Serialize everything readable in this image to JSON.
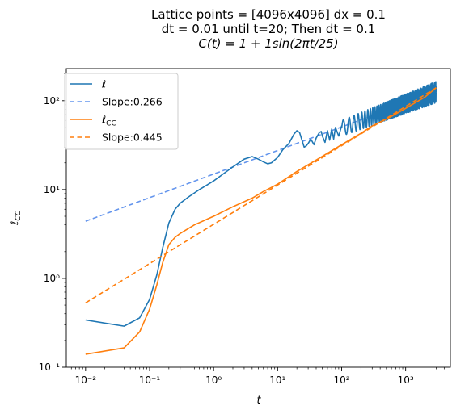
{
  "chart_data": {
    "type": "line",
    "title_lines": [
      "Lattice points = [4096x4096] dx = 0.1",
      "dt = 0.01 until t=20; Then dt = 0.1",
      "C(t) = 1 + 1sin(2πt/25)"
    ],
    "xlabel": "t",
    "ylabel": "ℓ_CC",
    "xscale": "log",
    "yscale": "log",
    "xlim": [
      0.005,
      5000
    ],
    "ylim": [
      0.1,
      230
    ],
    "x_ticks": [
      {
        "value": 0.01,
        "label": "10⁻²"
      },
      {
        "value": 0.1,
        "label": "10⁻¹"
      },
      {
        "value": 1,
        "label": "10⁰"
      },
      {
        "value": 10,
        "label": "10¹"
      },
      {
        "value": 100,
        "label": "10²"
      },
      {
        "value": 1000,
        "label": "10³"
      }
    ],
    "y_ticks": [
      {
        "value": 0.1,
        "label": "10⁻¹"
      },
      {
        "value": 1,
        "label": "10⁰"
      },
      {
        "value": 10,
        "label": "10¹"
      },
      {
        "value": 100,
        "label": "10²"
      }
    ],
    "grid": false,
    "legend_position": "top-left",
    "series": [
      {
        "name": "ℓ",
        "color": "#1f77b4",
        "style": "solid",
        "x": [
          0.01,
          0.04,
          0.07,
          0.1,
          0.13,
          0.16,
          0.2,
          0.25,
          0.3,
          0.4,
          0.6,
          1,
          2,
          3,
          4,
          5,
          6,
          7,
          8,
          10,
          12,
          15,
          18,
          20,
          22,
          24,
          26,
          28,
          30,
          33,
          37,
          40,
          45,
          48,
          50,
          55,
          60,
          65,
          70,
          75,
          80,
          90,
          100
        ],
        "y": [
          0.34,
          0.29,
          0.36,
          0.58,
          1.1,
          2.2,
          4.2,
          6.0,
          7.0,
          8.2,
          10.0,
          12.5,
          18.0,
          22.0,
          23.5,
          22.0,
          20.5,
          19.5,
          20.0,
          23.0,
          28.0,
          33.0,
          42.0,
          46.0,
          44.0,
          36.0,
          30.0,
          31.0,
          33.0,
          37.0,
          32.0,
          38.0,
          44.0,
          45.0,
          40.0,
          34.0,
          46.0,
          36.0,
          48.0,
          37.0,
          50.0,
          40.0,
          52.0
        ]
      },
      {
        "name": "Slope:0.266",
        "color": "#6495ed",
        "style": "dashed",
        "x": [
          0.01,
          3000
        ],
        "y": [
          4.4,
          125
        ]
      },
      {
        "name": "ℓ_CC",
        "color": "#ff7f0e",
        "style": "solid",
        "x": [
          0.01,
          0.04,
          0.07,
          0.1,
          0.13,
          0.16,
          0.2,
          0.25,
          0.3,
          0.5,
          1,
          2,
          4,
          6,
          10,
          20,
          40,
          80,
          100,
          200,
          300,
          500,
          1000,
          2000,
          3000
        ],
        "y": [
          0.14,
          0.165,
          0.25,
          0.45,
          0.85,
          1.5,
          2.4,
          2.9,
          3.2,
          4.0,
          5.0,
          6.4,
          8.0,
          9.5,
          11.5,
          16.0,
          21.5,
          29.0,
          32.0,
          43.0,
          52.0,
          62.0,
          82.0,
          110.0,
          140.0
        ]
      },
      {
        "name": "Slope:0.445",
        "color": "#ff7f0e",
        "style": "dashed",
        "x": [
          0.01,
          3000
        ],
        "y": [
          0.53,
          140
        ]
      }
    ],
    "oscillation": {
      "series": "ℓ",
      "x_range": [
        100,
        3000
      ],
      "center": [
        50,
        120
      ],
      "upper": [
        60,
        165
      ],
      "lower": [
        40,
        95
      ]
    }
  },
  "legend": [
    {
      "label": "ℓ",
      "color": "#1f77b4",
      "style": "solid"
    },
    {
      "label": "Slope:0.266",
      "color": "#6495ed",
      "style": "dashed"
    },
    {
      "label": "ℓ",
      "sub": "CC",
      "color": "#ff7f0e",
      "style": "solid"
    },
    {
      "label": "Slope:0.445",
      "color": "#ff7f0e",
      "style": "dashed"
    }
  ]
}
